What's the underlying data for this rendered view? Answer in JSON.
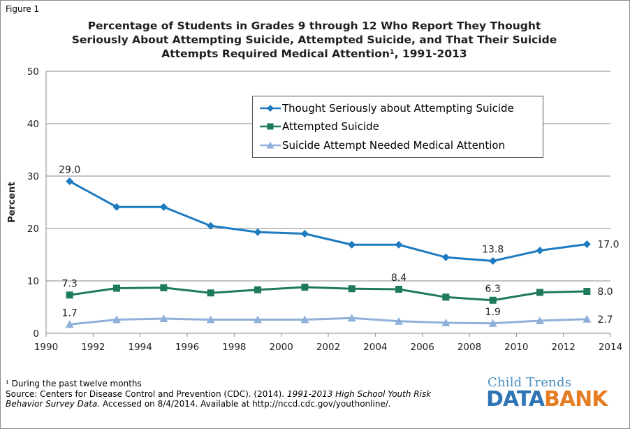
{
  "figure_label": "Figure 1",
  "title_lines": [
    "Percentage of Students in Grades 9 through 12 Who Report They Thought",
    "Seriously  About Attempting  Suicide, Attempted Suicide,  and That Their Suicide",
    "Attempts Required Medical Attention¹, 1991-2013"
  ],
  "chart_data": {
    "type": "line",
    "title": "Percentage of Students in Grades 9 through 12 Who Report They Thought Seriously About Attempting Suicide, Attempted Suicide, and That Their Suicide Attempts Required Medical Attention¹, 1991-2013",
    "xlabel": "",
    "ylabel": "Percent",
    "xlim": [
      1990,
      2014
    ],
    "ylim": [
      0,
      50
    ],
    "x_ticks": [
      1990,
      1992,
      1994,
      1996,
      1998,
      2000,
      2002,
      2004,
      2006,
      2008,
      2010,
      2012,
      2014
    ],
    "y_ticks": [
      0,
      10,
      20,
      30,
      40,
      50
    ],
    "grid": "horizontal",
    "legend_position": "top-right",
    "x": [
      1991,
      1993,
      1995,
      1997,
      1999,
      2001,
      2003,
      2005,
      2007,
      2009,
      2011,
      2013
    ],
    "series": [
      {
        "name": "Thought Seriously about Attempting Suicide",
        "color": "#1f7bbf",
        "marker": "diamond",
        "values": [
          29.0,
          24.1,
          24.1,
          20.5,
          19.3,
          19.0,
          16.9,
          16.9,
          14.5,
          13.8,
          15.8,
          17.0
        ]
      },
      {
        "name": "Attempted Suicide",
        "color": "#1e7a5a",
        "marker": "square",
        "values": [
          7.3,
          8.6,
          8.7,
          7.7,
          8.3,
          8.8,
          8.5,
          8.4,
          6.9,
          6.3,
          7.8,
          8.0
        ]
      },
      {
        "name": "Suicide Attempt Needed Medical Attention",
        "color": "#8fb0d9",
        "marker": "triangle",
        "values": [
          1.7,
          2.6,
          2.8,
          2.6,
          2.6,
          2.6,
          2.9,
          2.3,
          2.0,
          1.9,
          2.4,
          2.7
        ]
      }
    ],
    "data_labels": [
      {
        "series": 0,
        "index": 0,
        "text": "29.0"
      },
      {
        "series": 0,
        "index": 9,
        "text": "13.8"
      },
      {
        "series": 0,
        "index": 11,
        "text": "17.0"
      },
      {
        "series": 1,
        "index": 0,
        "text": "7.3"
      },
      {
        "series": 1,
        "index": 7,
        "text": "8.4"
      },
      {
        "series": 1,
        "index": 9,
        "text": "6.3"
      },
      {
        "series": 1,
        "index": 11,
        "text": "8.0"
      },
      {
        "series": 2,
        "index": 0,
        "text": "1.7"
      },
      {
        "series": 2,
        "index": 9,
        "text": "1.9"
      },
      {
        "series": 2,
        "index": 11,
        "text": "2.7"
      }
    ]
  },
  "footnote": {
    "note": "¹ During the past twelve months",
    "source_prefix": "Source: Centers for Disease Control and Prevention (CDC). (2014). ",
    "source_title_1": "1991-2013 High School Youth Risk",
    "source_title_2": "Behavior Survey Data.",
    "source_suffix": " Accessed on 8/4/2014. Available at http://nccd.cdc.gov/youthonline/."
  },
  "logo": {
    "top": "Child Trends",
    "data": "DATA",
    "bank": "BANK"
  }
}
